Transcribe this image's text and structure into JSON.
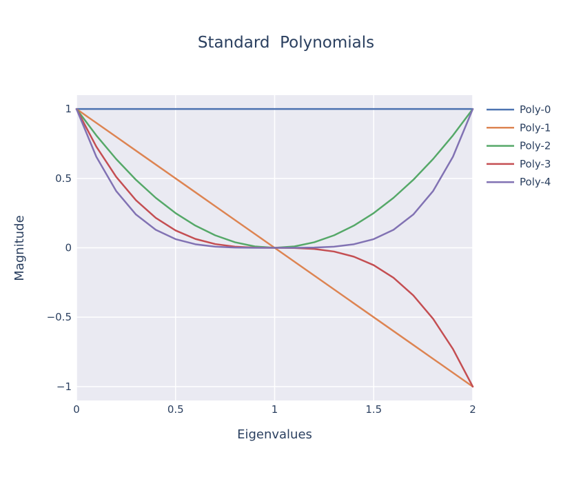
{
  "chart_data": {
    "type": "line",
    "title": "Standard  Polynomials",
    "xlabel": "Eigenvalues",
    "ylabel": "Magnitude",
    "xlim": [
      0,
      2
    ],
    "ylim": [
      -1.1,
      1.1
    ],
    "x_ticks": [
      0,
      0.5,
      1,
      1.5,
      2
    ],
    "x_tick_labels": [
      "0",
      "0.5",
      "1",
      "1.5",
      "2"
    ],
    "y_ticks": [
      1,
      0.5,
      0,
      -0.5,
      -1
    ],
    "y_tick_labels": [
      "1",
      "0.5",
      "0",
      "−0.5",
      "−1"
    ],
    "grid": true,
    "legend_position": "right",
    "x": [
      0,
      0.1,
      0.2,
      0.3,
      0.4,
      0.5,
      0.6,
      0.7,
      0.8,
      0.9,
      1,
      1.1,
      1.2,
      1.3,
      1.4,
      1.5,
      1.6,
      1.7,
      1.8,
      1.9,
      2
    ],
    "series": [
      {
        "name": "Poly-0",
        "color": "#4c72b0",
        "values": [
          1,
          1,
          1,
          1,
          1,
          1,
          1,
          1,
          1,
          1,
          1,
          1,
          1,
          1,
          1,
          1,
          1,
          1,
          1,
          1,
          1
        ]
      },
      {
        "name": "Poly-1",
        "color": "#dd8452",
        "values": [
          1,
          0.9,
          0.8,
          0.7,
          0.6,
          0.5,
          0.4,
          0.3,
          0.2,
          0.1,
          0,
          -0.1,
          -0.2,
          -0.3,
          -0.4,
          -0.5,
          -0.6,
          -0.7,
          -0.8,
          -0.9,
          -1
        ]
      },
      {
        "name": "Poly-2",
        "color": "#55a868",
        "values": [
          1,
          0.81,
          0.64,
          0.49,
          0.36,
          0.25,
          0.16,
          0.09,
          0.04,
          0.01,
          0,
          0.01,
          0.04,
          0.09,
          0.16,
          0.25,
          0.36,
          0.49,
          0.64,
          0.81,
          1
        ]
      },
      {
        "name": "Poly-3",
        "color": "#c44e52",
        "values": [
          1,
          0.729,
          0.512,
          0.343,
          0.216,
          0.125,
          0.064,
          0.027,
          0.008,
          0.001,
          0,
          -0.001,
          -0.008,
          -0.027,
          -0.064,
          -0.125,
          -0.216,
          -0.343,
          -0.512,
          -0.729,
          -1
        ]
      },
      {
        "name": "Poly-4",
        "color": "#8172b3",
        "values": [
          1,
          0.6561,
          0.4096,
          0.2401,
          0.1296,
          0.0625,
          0.0256,
          0.0081,
          0.0016,
          0.0001,
          0,
          0.0001,
          0.0016,
          0.0081,
          0.0256,
          0.0625,
          0.1296,
          0.2401,
          0.4096,
          0.6561,
          1
        ]
      }
    ]
  }
}
